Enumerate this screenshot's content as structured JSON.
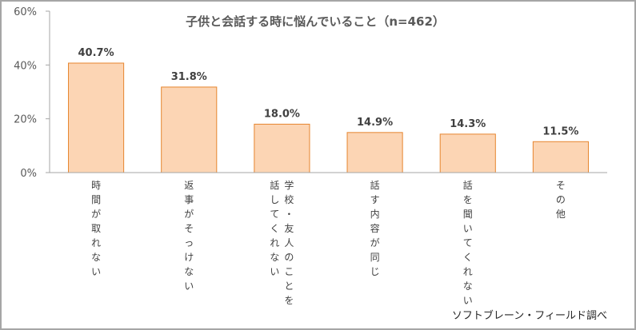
{
  "chart_data": {
    "type": "bar",
    "title": "子供と会話する時に悩んでいること（n=462）",
    "categories": [
      "時間が取れない",
      "返事がそっけない",
      "学校・友人のことを話してくれない",
      "話す内容が同じ",
      "話を聞いてくれない",
      "その他"
    ],
    "category_columns": [
      [
        "時間が取れない"
      ],
      [
        "返事がそっけない"
      ],
      [
        "学校・友人のことを",
        "話してくれない"
      ],
      [
        "話す内容が同じ"
      ],
      [
        "話を聞いてくれない"
      ],
      [
        "その他"
      ]
    ],
    "values": [
      40.7,
      31.8,
      18.0,
      14.9,
      14.3,
      11.5
    ],
    "data_labels": [
      "40.7%",
      "31.8%",
      "18.0%",
      "14.9%",
      "14.3%",
      "11.5%"
    ],
    "ylim": [
      0,
      60
    ],
    "yticks": [
      0,
      20,
      40,
      60
    ],
    "ytick_labels": [
      "0%",
      "20%",
      "40%",
      "60%"
    ],
    "xlabel": "",
    "ylabel": "",
    "grid": false,
    "legend": "none",
    "colors": {
      "bar_fill": "#fcd5b4",
      "bar_stroke": "#e6852e",
      "axis": "#a6a6a6"
    }
  },
  "source_note": "ソフトブレーン・フィールド調べ"
}
